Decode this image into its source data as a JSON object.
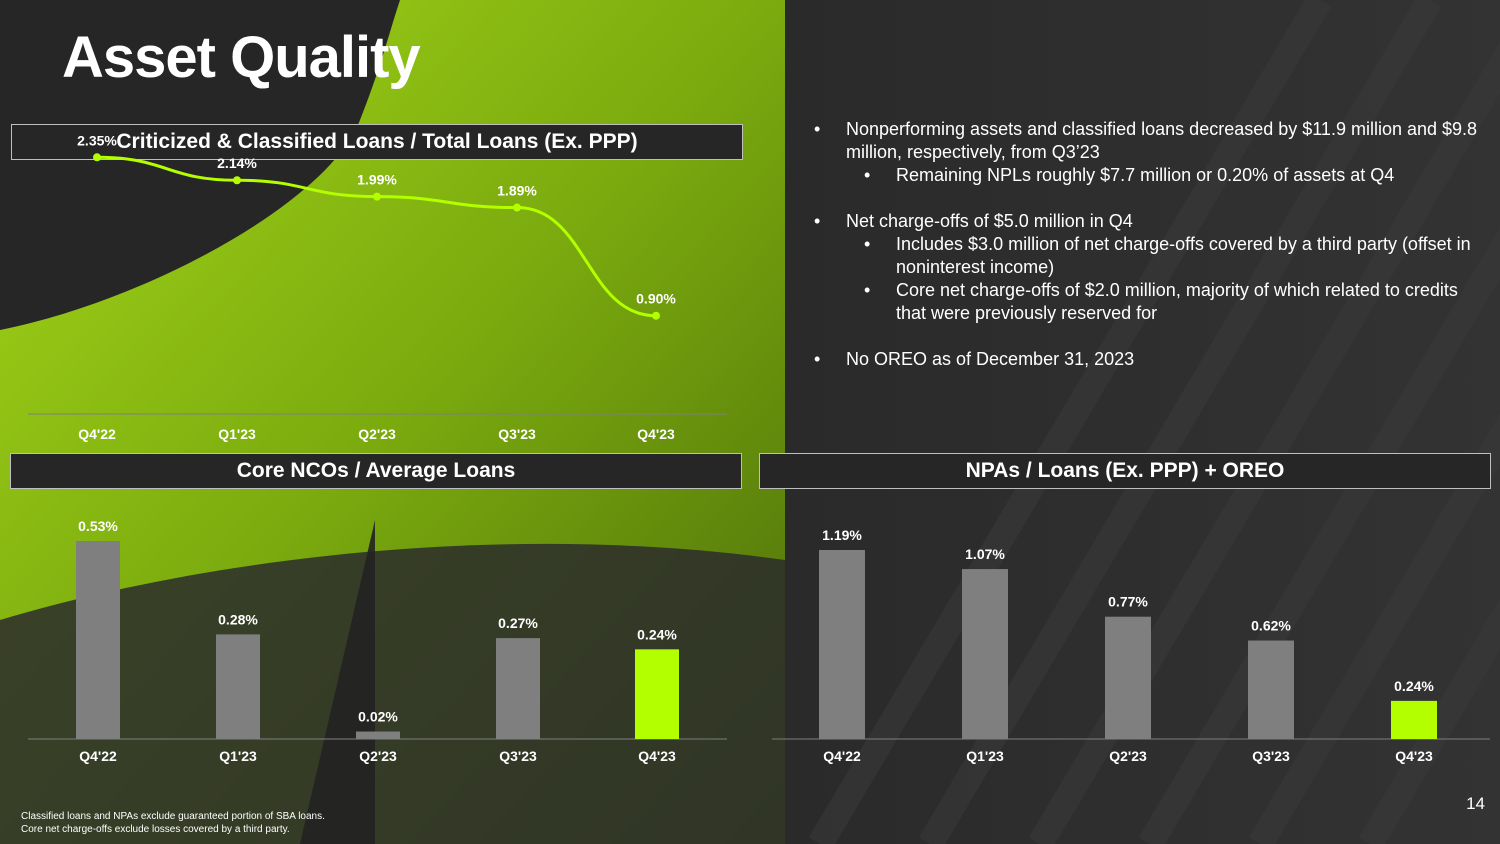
{
  "title": "Asset Quality",
  "bullets": [
    {
      "level": 1,
      "text": "Nonperforming assets and classified loans decreased by $11.9 million and $9.8 million, respectively, from Q3’23"
    },
    {
      "level": 2,
      "text": "Remaining NPLs roughly $7.7 million or 0.20% of assets at Q4"
    },
    {
      "level": 0,
      "text": ""
    },
    {
      "level": 1,
      "text": "Net charge-offs of $5.0 million in Q4"
    },
    {
      "level": 2,
      "text": "Includes $3.0 million of net charge-offs covered by a third party (offset in noninterest income)"
    },
    {
      "level": 2,
      "text": "Core net charge-offs of $2.0 million, majority of which related to credits that were previously reserved for"
    },
    {
      "level": 0,
      "text": ""
    },
    {
      "level": 1,
      "text": "No OREO as of December 31, 2023"
    }
  ],
  "bullet_glyph": "•",
  "footnotes": [
    "Classified loans and NPAs exclude guaranteed portion of SBA loans.",
    "Core net charge-offs exclude losses covered by a third party."
  ],
  "page_number": "14",
  "colors": {
    "accent": "#b3ff00",
    "bar": "#7f7f7f",
    "background": "#1f1f1f"
  },
  "chart_data": [
    {
      "type": "line",
      "title": "Criticized & Classified Loans / Total Loans (Ex. PPP)",
      "categories": [
        "Q4'22",
        "Q1'23",
        "Q2'23",
        "Q3'23",
        "Q4'23"
      ],
      "values": [
        2.35,
        2.14,
        1.99,
        1.89,
        0.9
      ],
      "labels": [
        "2.35%",
        "2.14%",
        "1.99%",
        "1.89%",
        "0.90%"
      ],
      "ylim": [
        0,
        2.6
      ],
      "grid": false,
      "color": "#b3ff00"
    },
    {
      "type": "bar",
      "title": "Core NCOs / Average Loans",
      "categories": [
        "Q4'22",
        "Q1'23",
        "Q2'23",
        "Q3'23",
        "Q4'23"
      ],
      "values": [
        0.53,
        0.28,
        0.02,
        0.27,
        0.24
      ],
      "labels": [
        "0.53%",
        "0.28%",
        "0.02%",
        "0.27%",
        "0.24%"
      ],
      "highlight_last": true,
      "ylim": [
        0,
        0.53
      ],
      "grid": false
    },
    {
      "type": "bar",
      "title": "NPAs / Loans (Ex. PPP) + OREO",
      "categories": [
        "Q4'22",
        "Q1'23",
        "Q2'23",
        "Q3'23",
        "Q4'23"
      ],
      "values": [
        1.19,
        1.07,
        0.77,
        0.62,
        0.24
      ],
      "labels": [
        "1.19%",
        "1.07%",
        "0.77%",
        "0.62%",
        "0.24%"
      ],
      "highlight_last": true,
      "ylim": [
        0,
        1.19
      ],
      "grid": false
    }
  ]
}
